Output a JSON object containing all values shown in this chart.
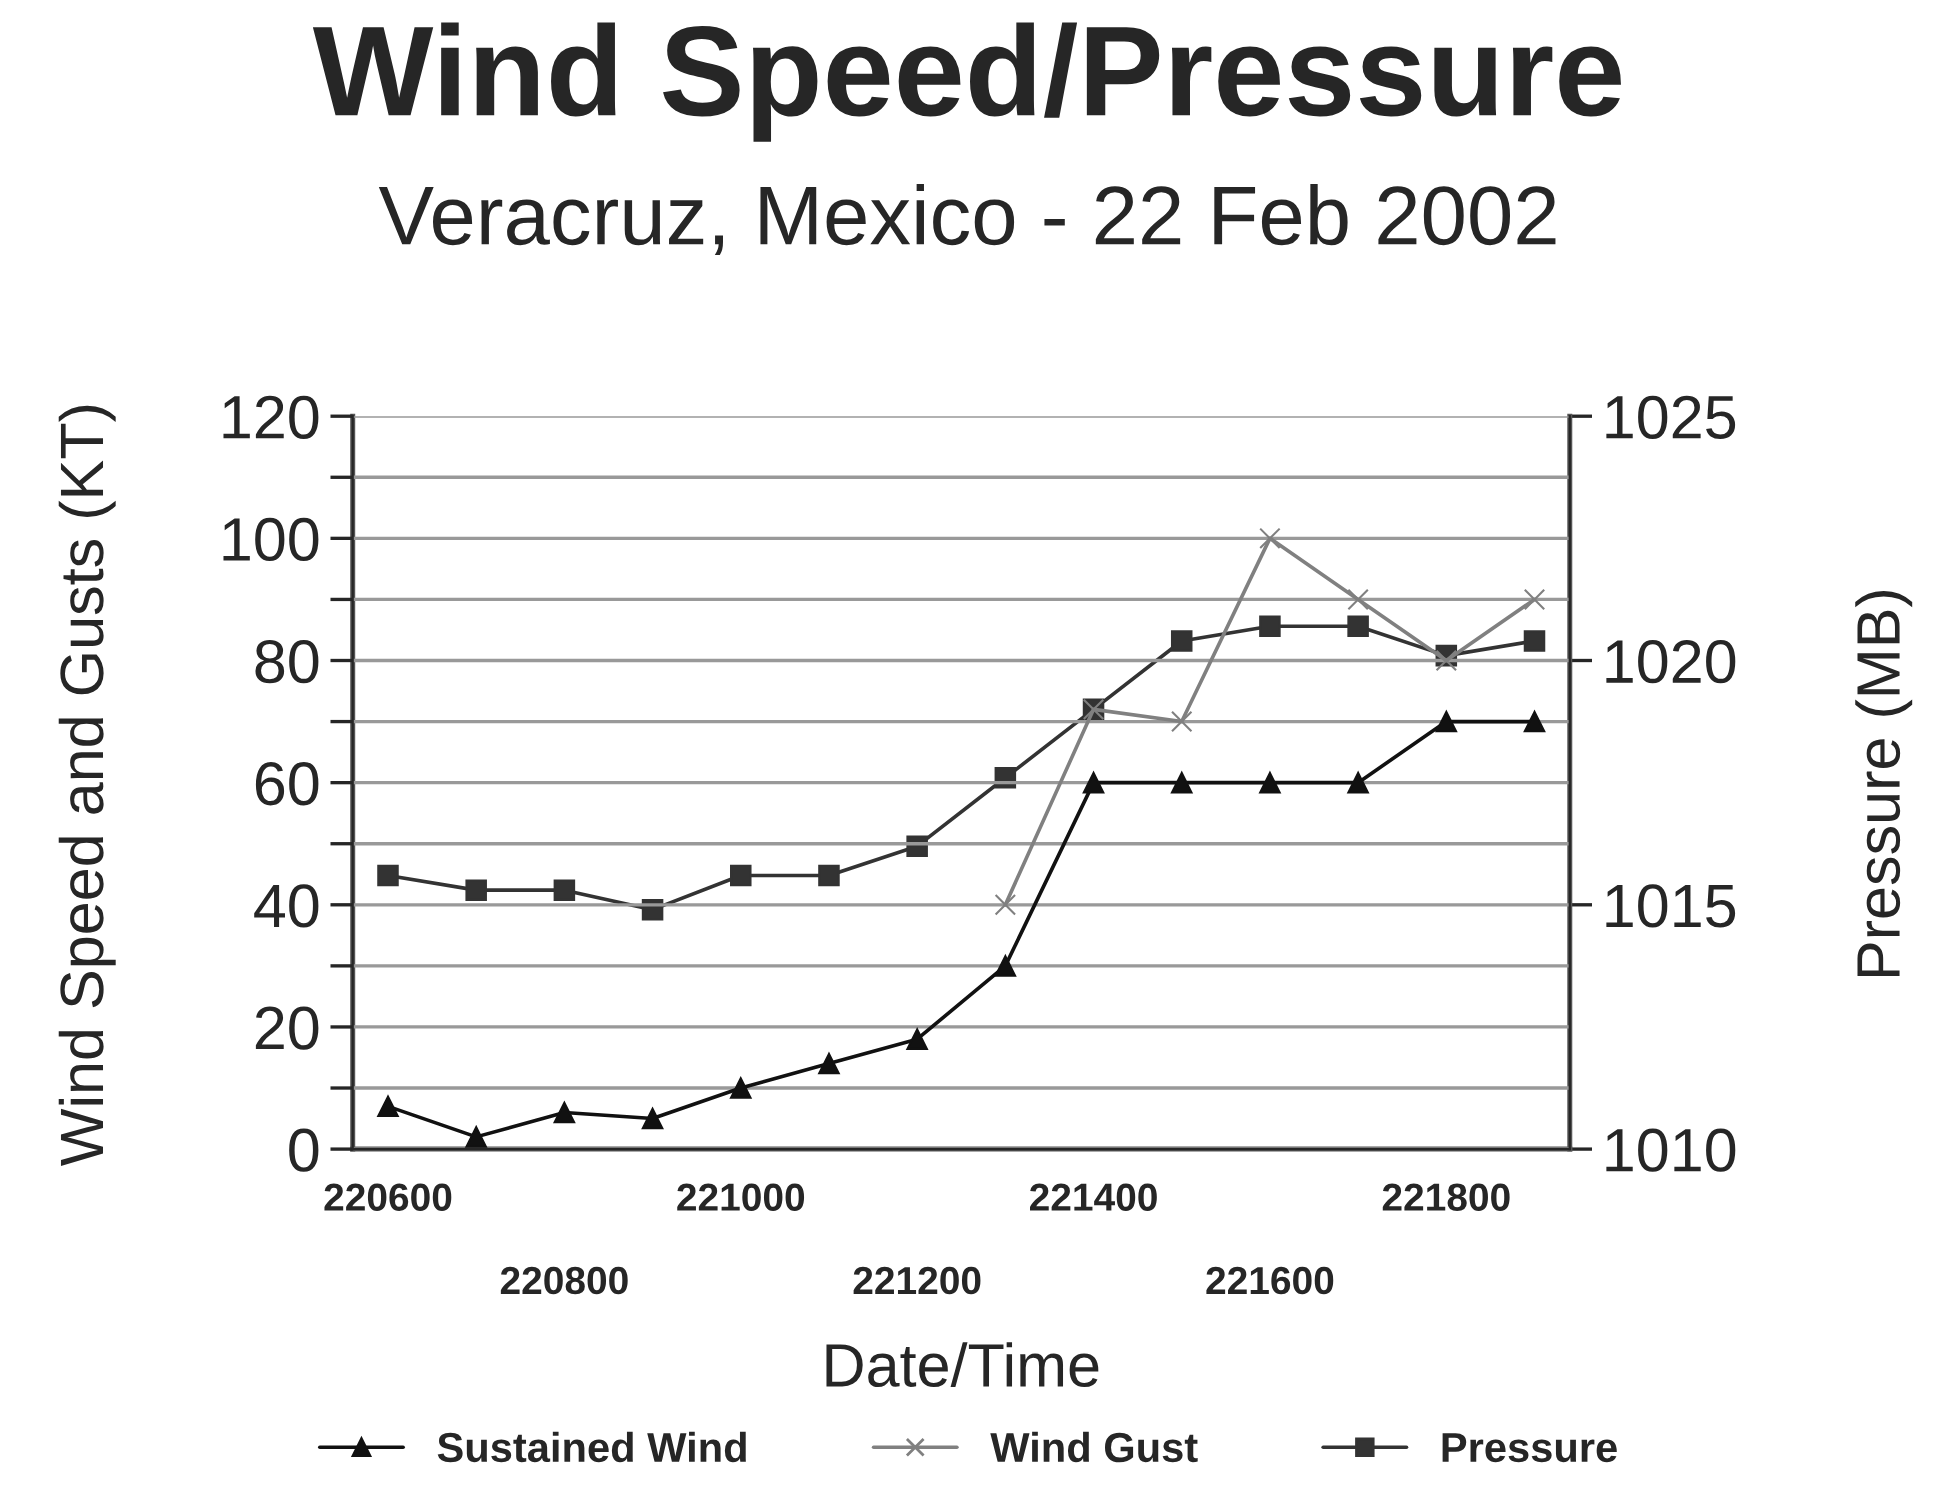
{
  "chart_data": {
    "type": "line",
    "title": "Wind Speed/Pressure",
    "subtitle": "Veracruz, Mexico - 22 Feb 2002",
    "xlabel": "Date/Time",
    "ylabel": "Wind Speed and Gusts (KT)",
    "y2label": "Pressure (MB)",
    "categories": [
      "220600",
      null,
      "220800",
      null,
      "221000",
      null,
      "221200",
      null,
      "221400",
      null,
      "221600",
      null,
      "221800",
      null
    ],
    "series": [
      {
        "name": "Sustained Wind",
        "color": "#111111",
        "marker": "triangle",
        "values": [
          7,
          2,
          6,
          5,
          10,
          14,
          18,
          30,
          60,
          60,
          60,
          60,
          70,
          70
        ]
      },
      {
        "name": "Wind Gust",
        "color": "#808080",
        "marker": "cross",
        "values": [
          null,
          null,
          null,
          null,
          null,
          null,
          null,
          40,
          72,
          70,
          100,
          90,
          80,
          90
        ]
      },
      {
        "name": "Pressure",
        "color": "#333333",
        "marker": "square",
        "axis": "y2",
        "values": [
          1015.6,
          1015.3,
          1015.3,
          1014.9,
          1015.6,
          1015.6,
          1016.2,
          1017.6,
          1019.0,
          1020.4,
          1020.7,
          1020.7,
          1020.1,
          1020.4
        ]
      }
    ],
    "ylim": [
      0,
      120
    ],
    "yticks": [
      0,
      {
        "value": 10,
        "label": null
      },
      20,
      {
        "value": 30,
        "label": null
      },
      40,
      {
        "value": 50,
        "label": null
      },
      60,
      {
        "value": 70,
        "label": null
      },
      80,
      {
        "value": 90,
        "label": null
      },
      100,
      {
        "value": 110,
        "label": null
      },
      120
    ],
    "y2lim": [
      1010,
      1025
    ],
    "y2ticks": [
      1010,
      1015,
      1020,
      1025
    ],
    "grid": "y",
    "legend": "bottom",
    "line_style": "solid"
  }
}
